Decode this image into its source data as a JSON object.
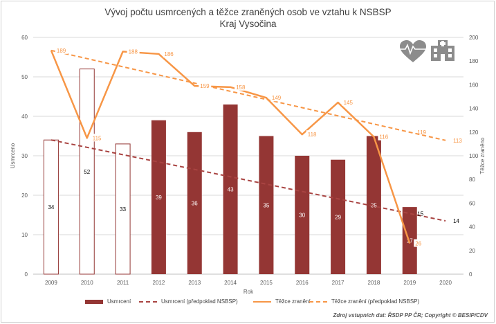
{
  "chart_data": {
    "type": "bar",
    "title": "Vývoj počtu usmrcených a těžce zraněných osob ve vztahu k NSBSP",
    "subtitle": "Kraj Vysočina",
    "xlabel": "Rok",
    "ylabel": "Usmrceno",
    "y2label": "Těžce zraněno",
    "ylim": [
      0,
      60
    ],
    "y2lim": [
      0,
      200
    ],
    "yticks": [
      "0",
      "10",
      "20",
      "30",
      "40",
      "50",
      "60"
    ],
    "y2ticks": [
      "0",
      "20",
      "40",
      "60",
      "80",
      "100",
      "120",
      "140",
      "160",
      "180",
      "200"
    ],
    "categories": [
      "2009",
      "2010",
      "2011",
      "2012",
      "2013",
      "2014",
      "2015",
      "2016",
      "2017",
      "2018",
      "2019",
      "2020"
    ],
    "series": [
      {
        "name": "Usmrcení",
        "kind": "bar",
        "axis": "left",
        "values": [
          34,
          52,
          33,
          39,
          36,
          43,
          35,
          30,
          29,
          35,
          17,
          null
        ],
        "labels": [
          "34",
          "52",
          "33",
          "39",
          "36",
          "43",
          "35",
          "30",
          "29",
          "35",
          "17",
          ""
        ],
        "outline_only": [
          true,
          true,
          true,
          false,
          false,
          false,
          false,
          false,
          false,
          false,
          false,
          false
        ],
        "color": "#943634"
      },
      {
        "name": "Usmrcení (předpoklad NSBSP)",
        "kind": "line-dashed",
        "axis": "left",
        "start": [
          "2009",
          34
        ],
        "end": [
          "2020",
          13.5
        ],
        "labels": {
          "2019": "15",
          "2020": "14"
        },
        "color": "#a94442"
      },
      {
        "name": "Těžce zranění",
        "kind": "line",
        "axis": "right",
        "values": [
          189,
          115,
          188,
          186,
          159,
          158,
          149,
          118,
          145,
          116,
          26,
          null
        ],
        "labels": [
          "189",
          "115",
          "188",
          "186",
          "159",
          "158",
          "149",
          "118",
          "145",
          "116",
          "26",
          ""
        ],
        "color": "#f79646"
      },
      {
        "name": "Těžce zranění (předpoklad NSBSP)",
        "kind": "line-dashed",
        "axis": "right",
        "start": [
          "2009",
          189
        ],
        "end": [
          "2020",
          113
        ],
        "labels": {
          "2019": "119",
          "2020": "113"
        },
        "color": "#f79646"
      }
    ],
    "legend_position": "bottom",
    "grid": true
  },
  "source": "Zdroj vstupních dat: ŘSDP PP ČR; Copyright © BESIP/CDV",
  "icons": [
    "heart-pulse-icon",
    "hospital-icon"
  ]
}
